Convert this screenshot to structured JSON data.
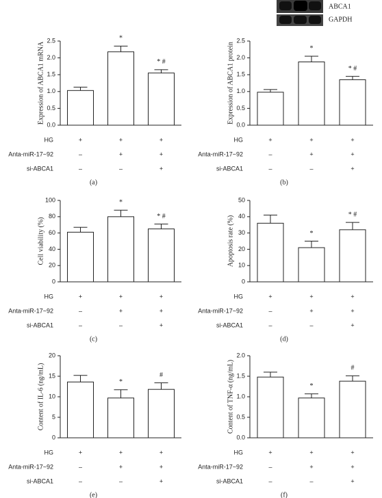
{
  "blot": {
    "labels": [
      "ABCA1",
      "GAPDH"
    ]
  },
  "chart_data": [
    {
      "type": "bar",
      "ylabel": "Expression of ABCA1 mRNA",
      "panel": "(a)",
      "color": "#ffffff",
      "values": [
        1.03,
        2.18,
        1.55
      ],
      "errors": [
        0.1,
        0.17,
        0.1
      ],
      "bar_labels": [
        null,
        "*",
        "* #"
      ],
      "ylim": [
        0,
        2.5
      ],
      "yticks": [
        {
          "value": 0,
          "label": "0.0"
        },
        {
          "value": 0.5,
          "label": "0.5"
        },
        {
          "value": 1,
          "label": "1.0"
        },
        {
          "value": 1.5,
          "label": "1.5"
        },
        {
          "value": 2,
          "label": "2.0"
        },
        {
          "value": 2.5,
          "label": "2.5"
        }
      ],
      "conditions": [
        {
          "name": "HG",
          "signs": [
            "+",
            "+",
            "+"
          ]
        },
        {
          "name": "Anta-miR-17~92",
          "signs": [
            "–",
            "+",
            "+"
          ]
        },
        {
          "name": "si-ABCA1",
          "signs": [
            "–",
            "–",
            "+"
          ]
        }
      ]
    },
    {
      "type": "bar",
      "ylabel": "Expression of ABCA1 protein",
      "panel": "(b)",
      "color": "#ffffff",
      "values": [
        0.98,
        1.88,
        1.35
      ],
      "errors": [
        0.08,
        0.17,
        0.1
      ],
      "bar_labels": [
        null,
        "*",
        "* #"
      ],
      "ylim": [
        0,
        2.5
      ],
      "yticks": [
        {
          "value": 0,
          "label": "0.0"
        },
        {
          "value": 0.5,
          "label": "0.5"
        },
        {
          "value": 1,
          "label": "1.0"
        },
        {
          "value": 1.5,
          "label": "1.5"
        },
        {
          "value": 2,
          "label": "2.0"
        },
        {
          "value": 2.5,
          "label": "2.5"
        }
      ],
      "conditions": [
        {
          "name": "HG",
          "signs": [
            "+",
            "+",
            "+"
          ]
        },
        {
          "name": "Anta-miR-17~92",
          "signs": [
            "–",
            "+",
            "+"
          ]
        },
        {
          "name": "si-ABCA1",
          "signs": [
            "–",
            "–",
            "+"
          ]
        }
      ]
    },
    {
      "type": "bar",
      "ylabel": "Cell viability (%)",
      "panel": "(c)",
      "color": "#ffffff",
      "values": [
        61,
        80,
        65
      ],
      "errors": [
        6,
        8,
        6
      ],
      "bar_labels": [
        null,
        "*",
        "* #"
      ],
      "ylim": [
        0,
        100
      ],
      "yticks": [
        0,
        20,
        40,
        60,
        80,
        100
      ],
      "conditions": [
        {
          "name": "HG",
          "signs": [
            "+",
            "+",
            "+"
          ]
        },
        {
          "name": "Anta-miR-17~92",
          "signs": [
            "–",
            "+",
            "+"
          ]
        },
        {
          "name": "si-ABCA1",
          "signs": [
            "–",
            "–",
            "+"
          ]
        }
      ]
    },
    {
      "type": "bar",
      "ylabel": "Apoptosis rate (%)",
      "panel": "(d)",
      "color": "#ffffff",
      "values": [
        36,
        21,
        32
      ],
      "errors": [
        5,
        4,
        4.5
      ],
      "bar_labels": [
        null,
        "*",
        "* #"
      ],
      "ylim": [
        0,
        50
      ],
      "yticks": [
        0,
        10,
        20,
        30,
        40,
        50
      ],
      "conditions": [
        {
          "name": "HG",
          "signs": [
            "+",
            "+",
            "+"
          ]
        },
        {
          "name": "Anta-miR-17~92",
          "signs": [
            "–",
            "+",
            "+"
          ]
        },
        {
          "name": "si-ABCA1",
          "signs": [
            "–",
            "–",
            "+"
          ]
        }
      ]
    },
    {
      "type": "bar",
      "ylabel": "Content of IL-6 (ng/mL)",
      "panel": "(e)",
      "color": "#ffffff",
      "values": [
        13.6,
        9.7,
        11.8
      ],
      "errors": [
        1.6,
        2,
        1.6
      ],
      "bar_labels": [
        null,
        "*",
        "#"
      ],
      "ylim": [
        0,
        20
      ],
      "yticks": [
        0,
        5,
        10,
        15,
        20
      ],
      "conditions": [
        {
          "name": "HG",
          "signs": [
            "+",
            "+",
            "+"
          ]
        },
        {
          "name": "Anta-miR-17~92",
          "signs": [
            "–",
            "+",
            "+"
          ]
        },
        {
          "name": "si-ABCA1",
          "signs": [
            "–",
            "–",
            "+"
          ]
        }
      ]
    },
    {
      "type": "bar",
      "ylabel": "Content of TNF-α (ng/mL)",
      "panel": "(f)",
      "color": "#ffffff",
      "values": [
        1.48,
        0.97,
        1.38
      ],
      "errors": [
        0.12,
        0.1,
        0.13
      ],
      "bar_labels": [
        null,
        "*",
        "#"
      ],
      "ylim": [
        0,
        2
      ],
      "yticks": [
        {
          "value": 0,
          "label": "0.0"
        },
        {
          "value": 0.5,
          "label": "0.5"
        },
        {
          "value": 1,
          "label": "1.0"
        },
        {
          "value": 1.5,
          "label": "1.5"
        },
        {
          "value": 2,
          "label": "2.0"
        }
      ],
      "conditions": [
        {
          "name": "HG",
          "signs": [
            "+",
            "+",
            "+"
          ]
        },
        {
          "name": "Anta-miR-17~92",
          "signs": [
            "–",
            "+",
            "+"
          ]
        },
        {
          "name": "si-ABCA1",
          "signs": [
            "–",
            "–",
            "+"
          ]
        }
      ]
    }
  ]
}
